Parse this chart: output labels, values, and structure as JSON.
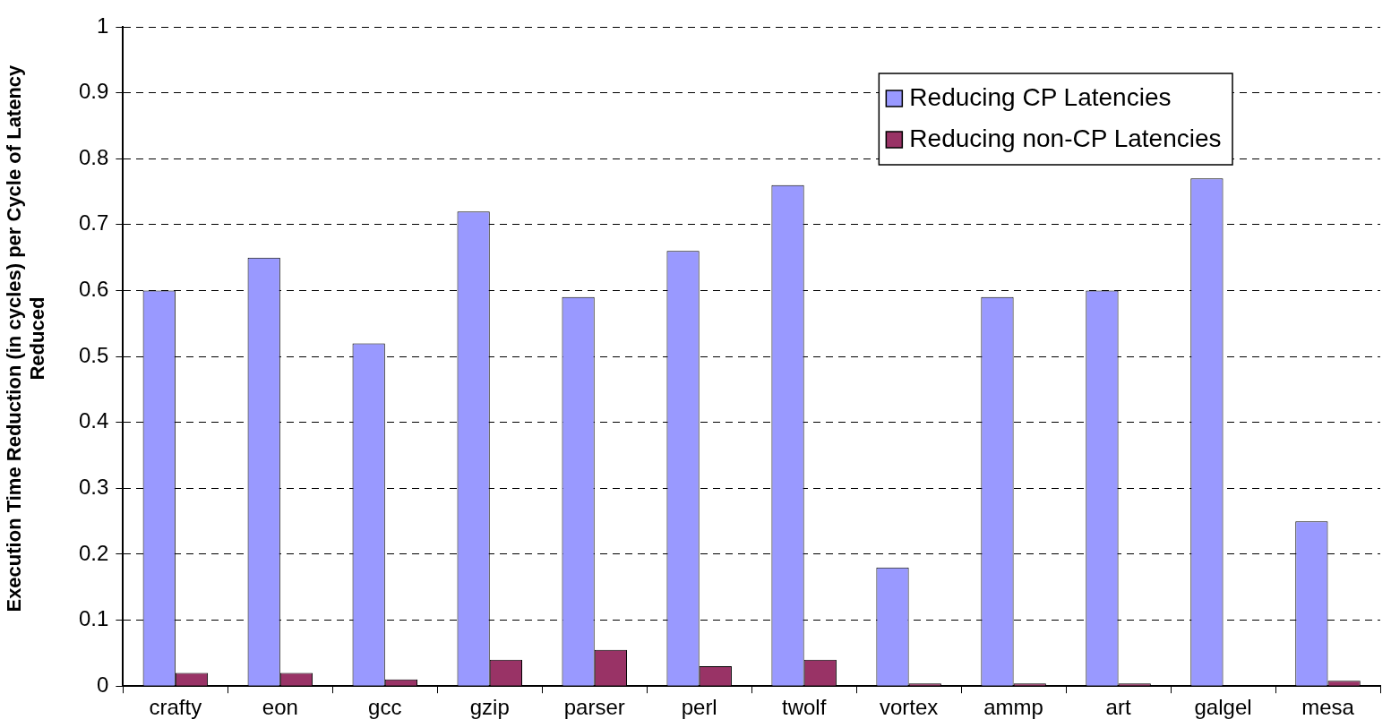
{
  "chart_data": {
    "type": "bar",
    "ylabel": "Execution Time Reduction (in cycles) per Cycle of Latency Reduced",
    "categories": [
      "crafty",
      "eon",
      "gcc",
      "gzip",
      "parser",
      "perl",
      "twolf",
      "vortex",
      "ammp",
      "art",
      "galgel",
      "mesa"
    ],
    "series": [
      {
        "name": "Reducing CP Latencies",
        "color": "#9999ff",
        "values": [
          0.6,
          0.65,
          0.52,
          0.72,
          0.59,
          0.66,
          0.76,
          0.18,
          0.59,
          0.6,
          0.77,
          0.25
        ]
      },
      {
        "name": "Reducing non-CP Latencies",
        "color": "#993366",
        "values": [
          0.02,
          0.02,
          0.01,
          0.04,
          0.055,
          0.03,
          0.04,
          0.004,
          0.004,
          0.004,
          null,
          0.008
        ]
      }
    ],
    "ylim": [
      0,
      1
    ],
    "yticks": [
      0,
      0.1,
      0.2,
      0.3,
      0.4,
      0.5,
      0.6,
      0.7,
      0.8,
      0.9,
      1
    ],
    "grid": "y",
    "legend": "top right"
  }
}
